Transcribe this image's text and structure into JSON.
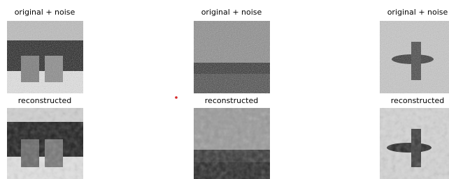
{
  "grid": [
    [
      "original + noise",
      "original + noise",
      "original + noise"
    ],
    [
      "reconstructed",
      "reconstructed",
      "reconstructed"
    ]
  ]
}
